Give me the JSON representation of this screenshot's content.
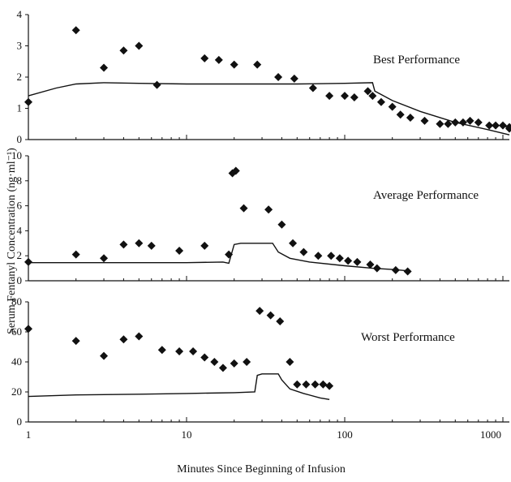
{
  "chart_data": {
    "type": "scatter",
    "xlabel": "Minutes Since Beginning of Infusion",
    "ylabel": "Serum Fentanyl Concentration (ng·ml⁻¹)",
    "x_scale": "log",
    "xlim": [
      1,
      1400
    ],
    "x_ticks": [
      1,
      10,
      100,
      1000
    ],
    "x_tick_labels": [
      "1",
      "10",
      "100",
      "1000"
    ],
    "panels": [
      {
        "title": "Best Performance",
        "ylim": [
          0,
          4
        ],
        "y_ticks": [
          0,
          1,
          2,
          3,
          4
        ],
        "y_tick_labels": [
          "0",
          "1",
          "2",
          "3",
          "4"
        ],
        "measured": [
          [
            1,
            1.2
          ],
          [
            2,
            3.5
          ],
          [
            3,
            2.3
          ],
          [
            4,
            2.85
          ],
          [
            5,
            3.0
          ],
          [
            6.5,
            1.75
          ],
          [
            13,
            2.6
          ],
          [
            16,
            2.55
          ],
          [
            20,
            2.4
          ],
          [
            28,
            2.4
          ],
          [
            38,
            2.0
          ],
          [
            48,
            1.95
          ],
          [
            63,
            1.65
          ],
          [
            80,
            1.4
          ],
          [
            100,
            1.4
          ],
          [
            115,
            1.35
          ],
          [
            140,
            1.55
          ],
          [
            150,
            1.4
          ],
          [
            170,
            1.2
          ],
          [
            200,
            1.05
          ],
          [
            225,
            0.8
          ],
          [
            260,
            0.7
          ],
          [
            320,
            0.6
          ],
          [
            400,
            0.5
          ],
          [
            450,
            0.5
          ],
          [
            500,
            0.55
          ],
          [
            560,
            0.55
          ],
          [
            620,
            0.6
          ],
          [
            700,
            0.55
          ],
          [
            820,
            0.45
          ],
          [
            900,
            0.45
          ],
          [
            1000,
            0.45
          ],
          [
            1200,
            0.35
          ],
          [
            1400,
            0.4
          ]
        ],
        "predicted": [
          [
            1,
            1.4
          ],
          [
            1.5,
            1.65
          ],
          [
            2,
            1.78
          ],
          [
            3,
            1.82
          ],
          [
            5,
            1.8
          ],
          [
            10,
            1.78
          ],
          [
            50,
            1.78
          ],
          [
            100,
            1.8
          ],
          [
            150,
            1.82
          ],
          [
            155,
            1.55
          ],
          [
            200,
            1.25
          ],
          [
            300,
            0.9
          ],
          [
            500,
            0.55
          ],
          [
            800,
            0.32
          ],
          [
            1400,
            0.15
          ]
        ]
      },
      {
        "title": "Average Performance",
        "ylim": [
          0,
          10
        ],
        "y_ticks": [
          0,
          2,
          4,
          6,
          8,
          10
        ],
        "y_tick_labels": [
          "0",
          "2",
          "4",
          "6",
          "8",
          "10"
        ],
        "measured": [
          [
            1,
            1.5
          ],
          [
            2,
            2.1
          ],
          [
            3,
            1.8
          ],
          [
            4,
            2.9
          ],
          [
            5,
            3.0
          ],
          [
            6,
            2.8
          ],
          [
            9,
            2.4
          ],
          [
            13,
            2.8
          ],
          [
            18.5,
            2.1
          ],
          [
            19.5,
            8.6
          ],
          [
            20.5,
            8.8
          ],
          [
            23,
            5.8
          ],
          [
            33,
            5.7
          ],
          [
            40,
            4.5
          ],
          [
            47,
            3.0
          ],
          [
            55,
            2.3
          ],
          [
            68,
            2.0
          ],
          [
            82,
            2.0
          ],
          [
            93,
            1.8
          ],
          [
            105,
            1.6
          ],
          [
            120,
            1.5
          ],
          [
            145,
            1.3
          ],
          [
            160,
            1.0
          ],
          [
            210,
            0.85
          ],
          [
            250,
            0.75
          ]
        ],
        "predicted": [
          [
            1,
            1.45
          ],
          [
            5,
            1.45
          ],
          [
            10,
            1.45
          ],
          [
            17,
            1.5
          ],
          [
            18.5,
            1.4
          ],
          [
            20,
            2.9
          ],
          [
            22,
            3.0
          ],
          [
            30,
            3.0
          ],
          [
            35,
            3.0
          ],
          [
            38,
            2.3
          ],
          [
            45,
            1.8
          ],
          [
            60,
            1.5
          ],
          [
            100,
            1.2
          ],
          [
            150,
            1.0
          ],
          [
            200,
            0.9
          ],
          [
            250,
            0.8
          ]
        ]
      },
      {
        "title": "Worst Performance",
        "ylim": [
          0,
          80
        ],
        "y_ticks": [
          0,
          20,
          40,
          60,
          80
        ],
        "y_tick_labels": [
          "0",
          "20",
          "40",
          "60",
          "80"
        ],
        "measured": [
          [
            1,
            62
          ],
          [
            2,
            54
          ],
          [
            3,
            44
          ],
          [
            4,
            55
          ],
          [
            5,
            57
          ],
          [
            7,
            48
          ],
          [
            9,
            47
          ],
          [
            11,
            47
          ],
          [
            13,
            43
          ],
          [
            15,
            40
          ],
          [
            17,
            36
          ],
          [
            20,
            39
          ],
          [
            24,
            40
          ],
          [
            29,
            74
          ],
          [
            34,
            71
          ],
          [
            39,
            67
          ],
          [
            45,
            40
          ],
          [
            50,
            25
          ],
          [
            57,
            25
          ],
          [
            65,
            25
          ],
          [
            73,
            25
          ],
          [
            80,
            24
          ]
        ],
        "predicted": [
          [
            1,
            17
          ],
          [
            2,
            18
          ],
          [
            5,
            18.5
          ],
          [
            10,
            19
          ],
          [
            20,
            19.5
          ],
          [
            27,
            20
          ],
          [
            28,
            31
          ],
          [
            30,
            32
          ],
          [
            38,
            32
          ],
          [
            40,
            28
          ],
          [
            45,
            22
          ],
          [
            55,
            19
          ],
          [
            70,
            16
          ],
          [
            80,
            15
          ]
        ]
      }
    ]
  }
}
